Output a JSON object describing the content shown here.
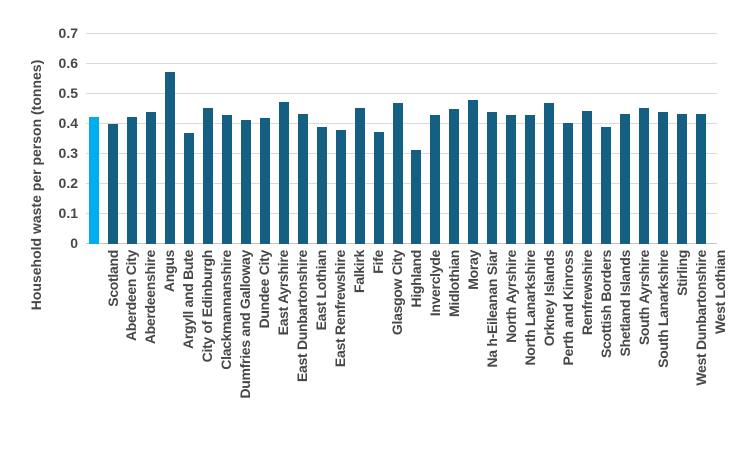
{
  "chart_data": {
    "type": "bar",
    "title": "",
    "xlabel": "",
    "ylabel": "Household waste per person (tonnes)",
    "ylim": [
      0,
      0.7
    ],
    "yticks": [
      0,
      0.1,
      0.2,
      0.3,
      0.4,
      0.5,
      0.6,
      0.7
    ],
    "ytick_labels": [
      "0",
      "0.1",
      "0.2",
      "0.3",
      "0.4",
      "0.5",
      "0.6",
      "0.7"
    ],
    "grid": true,
    "legend": false,
    "highlight_category": "Scotland",
    "colors": {
      "highlight_bar": "#00AEEF",
      "default_bar": "#156082",
      "gridline": "#D9D9D9",
      "axis_line": "#C6C6C6",
      "text": "#474747"
    },
    "categories": [
      "Scotland",
      "Aberdeen City",
      "Aberdeenshire",
      "Angus",
      "Argyll and Bute",
      "City of Edinburgh",
      "Clackmannanshire",
      "Dumfries and Galloway",
      "Dundee City",
      "East Ayrshire",
      "East Dunbartonshire",
      "East Lothian",
      "East Renfrewshire",
      "Falkirk",
      "Fife",
      "Glasgow City",
      "Highland",
      "Inverclyde",
      "Midlothian",
      "Moray",
      "Na h-Eileanan Siar",
      "North Ayrshire",
      "North Lanarkshire",
      "Orkney Islands",
      "Perth and Kinross",
      "Renfrewshire",
      "Scottish Borders",
      "Shetland Islands",
      "South Ayrshire",
      "South Lanarkshire",
      "Stirling",
      "West Dunbartonshire",
      "West Lothian"
    ],
    "values": [
      0.425,
      0.4,
      0.425,
      0.44,
      0.575,
      0.37,
      0.455,
      0.43,
      0.415,
      0.42,
      0.475,
      0.435,
      0.39,
      0.38,
      0.455,
      0.375,
      0.47,
      0.315,
      0.43,
      0.45,
      0.48,
      0.44,
      0.43,
      0.43,
      0.47,
      0.405,
      0.445,
      0.39,
      0.435,
      0.455,
      0.44,
      0.435,
      0.435
    ]
  }
}
